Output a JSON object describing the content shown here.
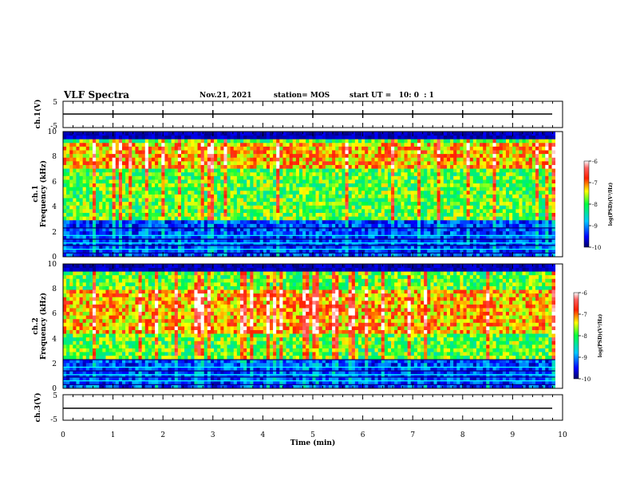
{
  "header": {
    "title": "VLF Spectra",
    "date": "Nov.21, 2021",
    "station": "station= MOS",
    "start_ut": "start UT =   10: 0  : 1"
  },
  "chart_data": [
    {
      "type": "line",
      "ylabel": "ch.1(V)",
      "xlim": [
        0,
        10
      ],
      "ylim": [
        -5,
        5
      ],
      "yticks": [
        "5",
        "-5"
      ],
      "series": [
        {
          "values": [
            0,
            0
          ]
        }
      ]
    },
    {
      "type": "heatmap",
      "ylabel_top": "ch.1",
      "ylabel": "Frequency (kHz)",
      "xlim": [
        0,
        10
      ],
      "ylim": [
        0,
        10
      ],
      "yticks": [
        "0",
        "2",
        "4",
        "6",
        "8",
        "10"
      ],
      "colorbar": {
        "label": "log(PSD)(V²/Hz)",
        "range": [
          -10,
          -6
        ],
        "ticks": [
          "-6",
          "-7",
          "-8",
          "-9",
          "-10"
        ]
      },
      "data_end_x": 9.85,
      "emission_band_khz": [
        3,
        9.3
      ],
      "intense_band_khz": [
        7.2,
        9.0
      ],
      "horizontal_lines_khz": [
        0.3,
        0.6,
        0.9,
        1.1,
        1.4,
        1.7,
        2.3
      ]
    },
    {
      "type": "heatmap",
      "ylabel_top": "ch.2",
      "ylabel": "Frequency (kHz)",
      "xlim": [
        0,
        10
      ],
      "ylim": [
        0,
        10
      ],
      "yticks": [
        "0",
        "2",
        "4",
        "6",
        "8",
        "10"
      ],
      "colorbar": {
        "label": "log(PSD)(V²/Hz)",
        "range": [
          -10,
          -6
        ],
        "ticks": [
          "-6",
          "-7",
          "-8",
          "-9",
          "-10"
        ]
      },
      "data_end_x": 9.85,
      "emission_band_khz": [
        2.5,
        9.5
      ],
      "intense_band_khz": [
        4.5,
        8.0
      ],
      "horizontal_lines_khz": [
        0.3,
        0.6,
        0.9,
        1.1,
        1.4,
        1.7,
        2.3
      ]
    },
    {
      "type": "line",
      "ylabel": "ch.3(V)",
      "xlim": [
        0,
        10
      ],
      "ylim": [
        -5,
        5
      ],
      "yticks": [
        "5",
        "-5"
      ],
      "series": [
        {
          "values": [
            0,
            0
          ]
        }
      ]
    }
  ],
  "xaxis": {
    "label": "Time (min)",
    "ticks": [
      "0",
      "1",
      "2",
      "3",
      "4",
      "5",
      "6",
      "7",
      "8",
      "9",
      "10"
    ]
  }
}
